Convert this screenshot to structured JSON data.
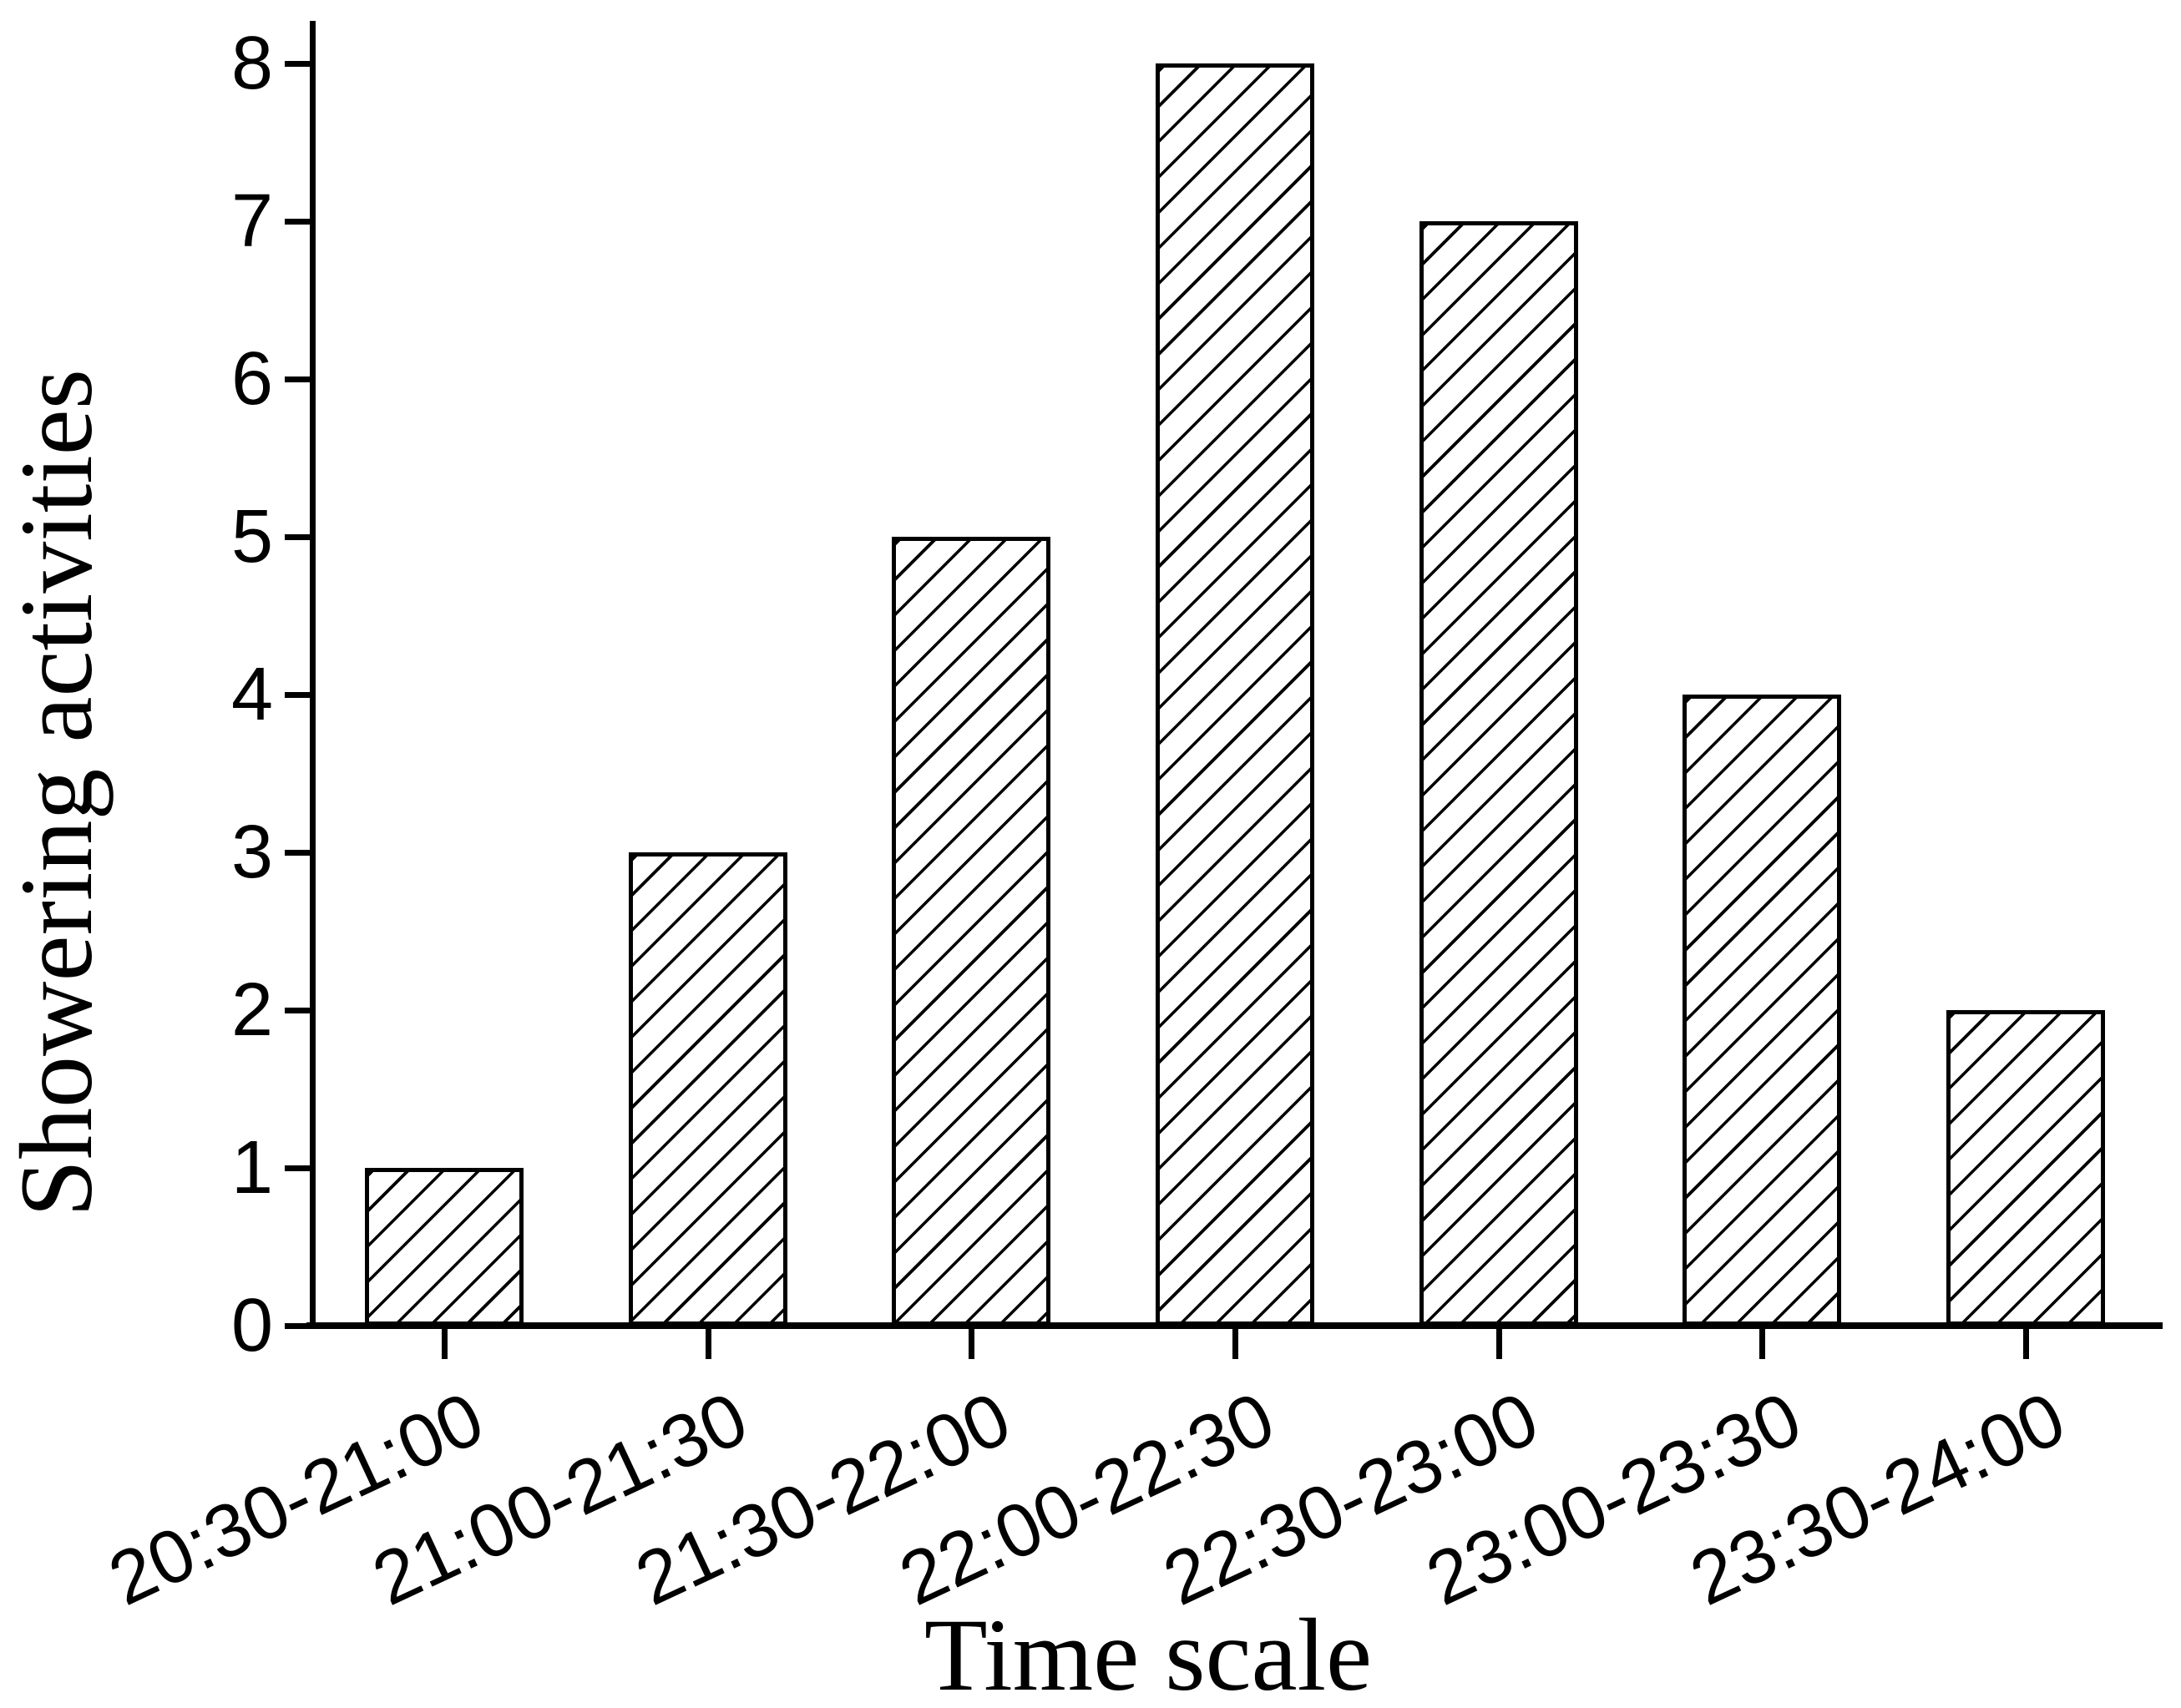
{
  "chart_data": {
    "type": "bar",
    "title": "",
    "xlabel": "Time scale",
    "ylabel": "Showering activities",
    "categories": [
      "20:30-21:00",
      "21:00-21:30",
      "21:30-22:00",
      "22:00-22:30",
      "22:30-23:00",
      "23:00-23:30",
      "23:30-24:00"
    ],
    "values": [
      1,
      3,
      5,
      8,
      7,
      4,
      2
    ],
    "yticks": [
      "0",
      "1",
      "2",
      "3",
      "4",
      "5",
      "6",
      "7",
      "8"
    ],
    "ylim": [
      0,
      8
    ],
    "grid": false,
    "legend": null,
    "x_tick_rotation_deg": 25,
    "bar_fill": "#ffffff",
    "bar_edge_color": "#000000",
    "hatch": "forward-diagonal",
    "ink_color": "#000000",
    "background_color": "#ffffff"
  }
}
